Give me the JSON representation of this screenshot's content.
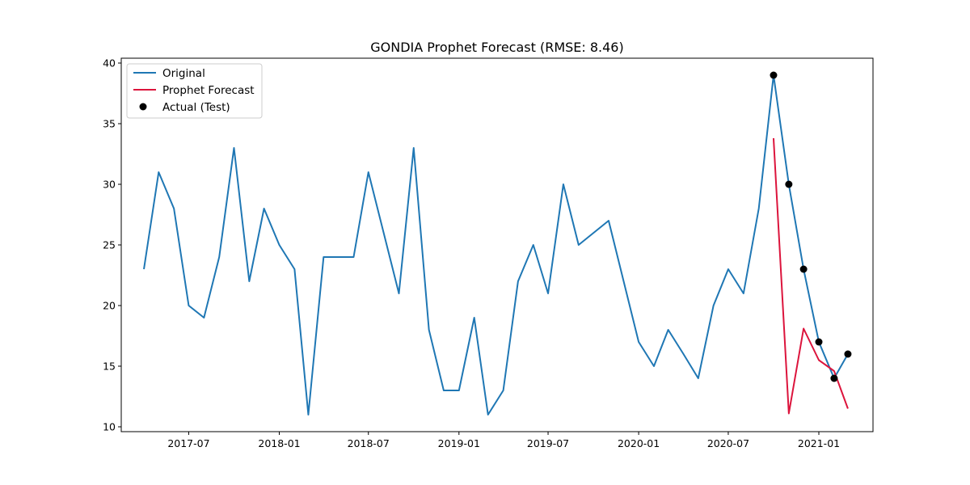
{
  "chart_data": {
    "type": "line",
    "title": "GONDIA Prophet Forecast (RMSE: 8.46)",
    "xlabel": "",
    "ylabel": "",
    "ylim": [
      9.6,
      40.4
    ],
    "xlim": [
      "2017-02-14",
      "2021-04-21"
    ],
    "y_ticks": [
      10,
      15,
      20,
      25,
      30,
      35,
      40
    ],
    "x_ticks": [
      {
        "date": "2017-07-01",
        "label": "2017-07"
      },
      {
        "date": "2018-01-01",
        "label": "2018-01"
      },
      {
        "date": "2018-07-01",
        "label": "2018-07"
      },
      {
        "date": "2019-01-01",
        "label": "2019-01"
      },
      {
        "date": "2019-07-01",
        "label": "2019-07"
      },
      {
        "date": "2020-01-01",
        "label": "2020-01"
      },
      {
        "date": "2020-07-01",
        "label": "2020-07"
      },
      {
        "date": "2021-01-01",
        "label": "2021-01"
      }
    ],
    "grid": false,
    "legend_position": "top-left",
    "series": [
      {
        "name": "Original",
        "kind": "line",
        "color": "#1f77b4",
        "points": [
          [
            "2017-04-01",
            23
          ],
          [
            "2017-05-01",
            31
          ],
          [
            "2017-06-01",
            28
          ],
          [
            "2017-07-01",
            20
          ],
          [
            "2017-08-01",
            19
          ],
          [
            "2017-09-01",
            24
          ],
          [
            "2017-10-01",
            33
          ],
          [
            "2017-11-01",
            22
          ],
          [
            "2017-12-01",
            28
          ],
          [
            "2018-01-01",
            25
          ],
          [
            "2018-02-01",
            23
          ],
          [
            "2018-03-01",
            11
          ],
          [
            "2018-04-01",
            24
          ],
          [
            "2018-05-01",
            24
          ],
          [
            "2018-06-01",
            24
          ],
          [
            "2018-07-01",
            31
          ],
          [
            "2018-08-01",
            26
          ],
          [
            "2018-09-01",
            21
          ],
          [
            "2018-10-01",
            33
          ],
          [
            "2018-11-01",
            18
          ],
          [
            "2018-12-01",
            13
          ],
          [
            "2019-01-01",
            13
          ],
          [
            "2019-02-01",
            19
          ],
          [
            "2019-03-01",
            11
          ],
          [
            "2019-04-01",
            13
          ],
          [
            "2019-05-01",
            22
          ],
          [
            "2019-06-01",
            25
          ],
          [
            "2019-07-01",
            21
          ],
          [
            "2019-08-01",
            30
          ],
          [
            "2019-09-01",
            25
          ],
          [
            "2019-11-01",
            27
          ],
          [
            "2020-01-01",
            17
          ],
          [
            "2020-02-01",
            15
          ],
          [
            "2020-03-01",
            18
          ],
          [
            "2020-04-01",
            16
          ],
          [
            "2020-05-01",
            14
          ],
          [
            "2020-06-01",
            20
          ],
          [
            "2020-07-01",
            23
          ],
          [
            "2020-08-01",
            21
          ],
          [
            "2020-09-01",
            28
          ],
          [
            "2020-10-01",
            39
          ],
          [
            "2020-11-01",
            30
          ],
          [
            "2020-12-01",
            23
          ],
          [
            "2021-01-01",
            17
          ],
          [
            "2021-02-01",
            14
          ],
          [
            "2021-03-01",
            16
          ]
        ]
      },
      {
        "name": "Prophet Forecast",
        "kind": "line",
        "color": "#dc143c",
        "points": [
          [
            "2020-10-01",
            33.8
          ],
          [
            "2020-11-01",
            11.1
          ],
          [
            "2020-12-01",
            18.1
          ],
          [
            "2021-01-01",
            15.5
          ],
          [
            "2021-02-01",
            14.6
          ],
          [
            "2021-03-01",
            11.5
          ]
        ]
      },
      {
        "name": "Actual (Test)",
        "kind": "scatter",
        "color": "#000000",
        "points": [
          [
            "2020-10-01",
            39
          ],
          [
            "2020-11-01",
            30
          ],
          [
            "2020-12-01",
            23
          ],
          [
            "2021-01-01",
            17
          ],
          [
            "2021-02-01",
            14
          ],
          [
            "2021-03-01",
            16
          ]
        ]
      }
    ]
  }
}
